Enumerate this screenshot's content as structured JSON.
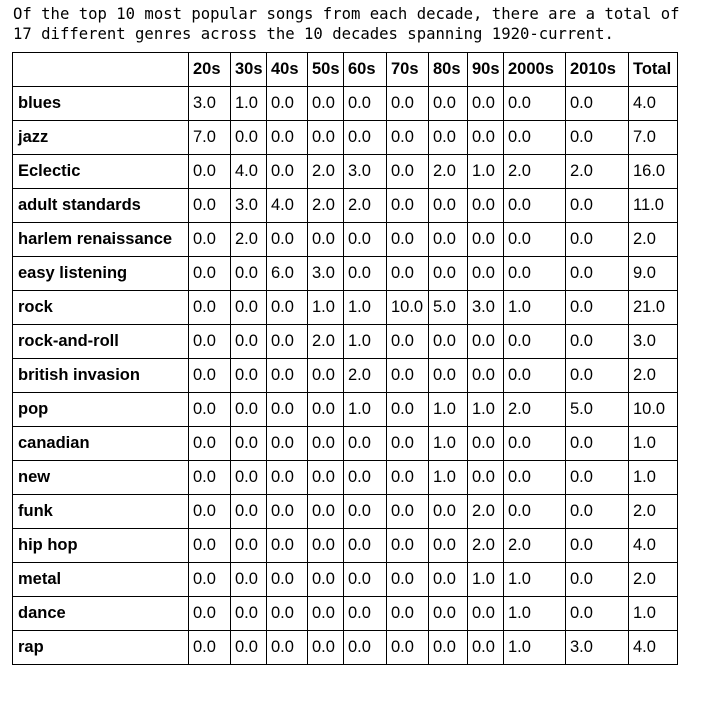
{
  "caption": "Of the top 10 most popular songs from each decade, there are a total of 17 different genres across the 10 decades spanning 1920-current.",
  "table": {
    "columns": [
      "20s",
      "30s",
      "40s",
      "50s",
      "60s",
      "70s",
      "80s",
      "90s",
      "2000s",
      "2010s",
      "Total"
    ],
    "rows": [
      {
        "genre": "blues",
        "values": [
          "3.0",
          "1.0",
          "0.0",
          "0.0",
          "0.0",
          "0.0",
          "0.0",
          "0.0",
          "0.0",
          "0.0",
          "4.0"
        ]
      },
      {
        "genre": "jazz",
        "values": [
          "7.0",
          "0.0",
          "0.0",
          "0.0",
          "0.0",
          "0.0",
          "0.0",
          "0.0",
          "0.0",
          "0.0",
          "7.0"
        ]
      },
      {
        "genre": "Eclectic",
        "values": [
          "0.0",
          "4.0",
          "0.0",
          "2.0",
          "3.0",
          "0.0",
          "2.0",
          "1.0",
          "2.0",
          "2.0",
          "16.0"
        ]
      },
      {
        "genre": "adult standards",
        "values": [
          "0.0",
          "3.0",
          "4.0",
          "2.0",
          "2.0",
          "0.0",
          "0.0",
          "0.0",
          "0.0",
          "0.0",
          "11.0"
        ]
      },
      {
        "genre": "harlem renaissance",
        "values": [
          "0.0",
          "2.0",
          "0.0",
          "0.0",
          "0.0",
          "0.0",
          "0.0",
          "0.0",
          "0.0",
          "0.0",
          "2.0"
        ]
      },
      {
        "genre": "easy listening",
        "values": [
          "0.0",
          "0.0",
          "6.0",
          "3.0",
          "0.0",
          "0.0",
          "0.0",
          "0.0",
          "0.0",
          "0.0",
          "9.0"
        ]
      },
      {
        "genre": "rock",
        "values": [
          "0.0",
          "0.0",
          "0.0",
          "1.0",
          "1.0",
          "10.0",
          "5.0",
          "3.0",
          "1.0",
          "0.0",
          "21.0"
        ]
      },
      {
        "genre": "rock-and-roll",
        "values": [
          "0.0",
          "0.0",
          "0.0",
          "2.0",
          "1.0",
          "0.0",
          "0.0",
          "0.0",
          "0.0",
          "0.0",
          "3.0"
        ]
      },
      {
        "genre": "british invasion",
        "values": [
          "0.0",
          "0.0",
          "0.0",
          "0.0",
          "2.0",
          "0.0",
          "0.0",
          "0.0",
          "0.0",
          "0.0",
          "2.0"
        ]
      },
      {
        "genre": "pop",
        "values": [
          "0.0",
          "0.0",
          "0.0",
          "0.0",
          "1.0",
          "0.0",
          "1.0",
          "1.0",
          "2.0",
          "5.0",
          "10.0"
        ]
      },
      {
        "genre": "canadian",
        "values": [
          "0.0",
          "0.0",
          "0.0",
          "0.0",
          "0.0",
          "0.0",
          "1.0",
          "0.0",
          "0.0",
          "0.0",
          "1.0"
        ]
      },
      {
        "genre": "new",
        "values": [
          "0.0",
          "0.0",
          "0.0",
          "0.0",
          "0.0",
          "0.0",
          "1.0",
          "0.0",
          "0.0",
          "0.0",
          "1.0"
        ]
      },
      {
        "genre": "funk",
        "values": [
          "0.0",
          "0.0",
          "0.0",
          "0.0",
          "0.0",
          "0.0",
          "0.0",
          "2.0",
          "0.0",
          "0.0",
          "2.0"
        ]
      },
      {
        "genre": "hip hop",
        "values": [
          "0.0",
          "0.0",
          "0.0",
          "0.0",
          "0.0",
          "0.0",
          "0.0",
          "2.0",
          "2.0",
          "0.0",
          "4.0"
        ]
      },
      {
        "genre": "metal",
        "values": [
          "0.0",
          "0.0",
          "0.0",
          "0.0",
          "0.0",
          "0.0",
          "0.0",
          "1.0",
          "1.0",
          "0.0",
          "2.0"
        ]
      },
      {
        "genre": "dance",
        "values": [
          "0.0",
          "0.0",
          "0.0",
          "0.0",
          "0.0",
          "0.0",
          "0.0",
          "0.0",
          "1.0",
          "0.0",
          "1.0"
        ]
      },
      {
        "genre": "rap",
        "values": [
          "0.0",
          "0.0",
          "0.0",
          "0.0",
          "0.0",
          "0.0",
          "0.0",
          "0.0",
          "1.0",
          "3.0",
          "4.0"
        ]
      }
    ]
  }
}
